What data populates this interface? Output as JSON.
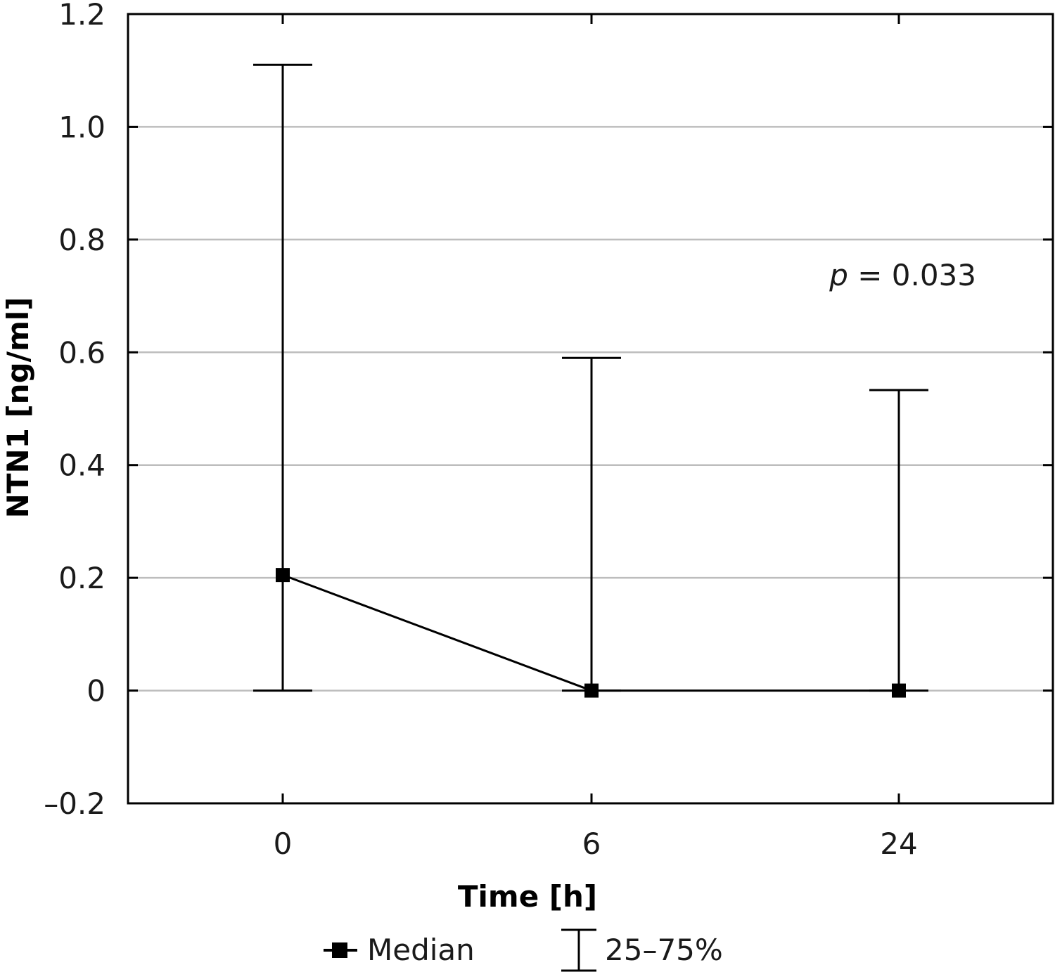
{
  "chart_data": {
    "type": "line",
    "title": "",
    "xlabel": "Time [h]",
    "ylabel": "NTN1 [ng/ml]",
    "categories": [
      "0",
      "6",
      "24"
    ],
    "ylim": [
      -0.2,
      1.2
    ],
    "yticks": [
      "1.2",
      "1.0",
      "0.8",
      "0.6",
      "0.4",
      "0.2",
      "0",
      "–0.2"
    ],
    "ytick_values": [
      1.2,
      1.0,
      0.8,
      0.6,
      0.4,
      0.2,
      0,
      -0.2
    ],
    "grid": true,
    "series": [
      {
        "name": "Median",
        "values": [
          0.205,
          0.0,
          0.0
        ],
        "q25": [
          0.0,
          0.0,
          0.0
        ],
        "q75": [
          1.11,
          0.59,
          0.533
        ]
      }
    ],
    "legend": {
      "position": "bottom",
      "median_label": "Median",
      "range_label": "25–75%"
    },
    "annotation": {
      "p_symbol": "p",
      "p_text": " = 0.033"
    },
    "colors": {
      "line": "#000000",
      "grid": "#bdbdbd",
      "frame": "#000000"
    }
  }
}
